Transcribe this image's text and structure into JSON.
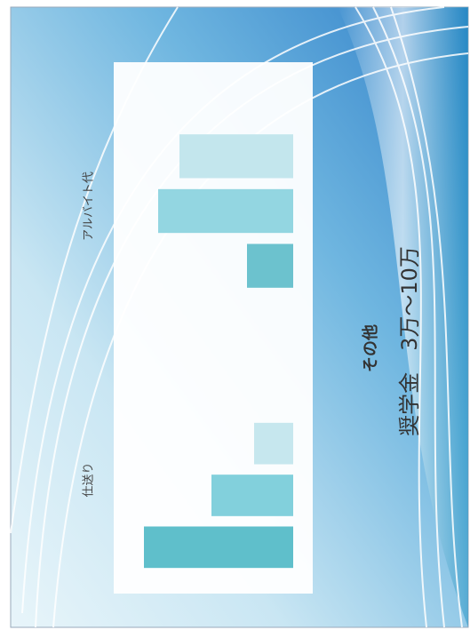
{
  "chart_data": [
    {
      "type": "bar",
      "title": "仕送り",
      "categories": [
        null,
        null,
        null
      ],
      "values": [
        84,
        46,
        22
      ],
      "colors": [
        "#5fbfcb",
        "#82d0dc",
        "#c6e7ee"
      ],
      "ylim": [
        0,
        100
      ]
    },
    {
      "type": "bar",
      "title": "アルバイト代",
      "categories": [
        null,
        null,
        null
      ],
      "values": [
        26,
        76,
        64
      ],
      "colors": [
        "#6cc2ce",
        "#93d6e1",
        "#c3e6ed"
      ],
      "ylim": [
        0,
        100
      ]
    }
  ],
  "slide": {
    "subtitle": "その他",
    "title": "奨学金　3万〜10万"
  }
}
